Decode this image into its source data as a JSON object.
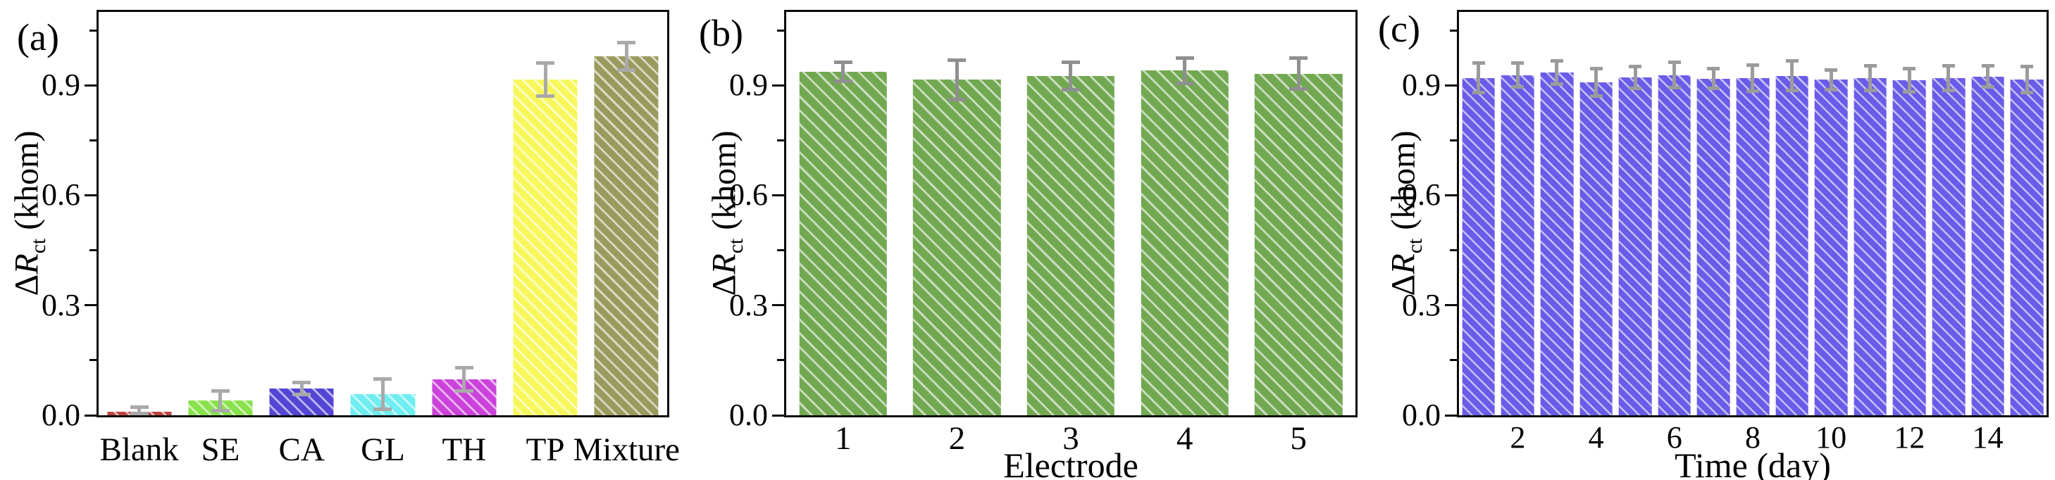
{
  "figure": {
    "panels": [
      {
        "label": "(a)",
        "ylabel_delta": "Δ",
        "ylabel_symbol": "R",
        "ylabel_sub": "ct",
        "ylabel_unit": " (khom)"
      },
      {
        "label": "(b)",
        "ylabel_delta": "Δ",
        "ylabel_symbol": "R",
        "ylabel_sub": "ct",
        "ylabel_unit": " (khom)"
      },
      {
        "label": "(c)",
        "ylabel_delta": "Δ",
        "ylabel_symbol": "R",
        "ylabel_sub": "ct",
        "ylabel_unit": " (khom)"
      }
    ]
  },
  "chart_data": [
    {
      "type": "bar",
      "panel": "a",
      "panel_label": "(a)",
      "title": "",
      "categories": [
        "Blank",
        "SE",
        "CA",
        "GL",
        "TH",
        "TP",
        "Mixture"
      ],
      "values": [
        0.01,
        0.04,
        0.073,
        0.057,
        0.098,
        0.916,
        0.979
      ],
      "errors": [
        0.016,
        0.032,
        0.021,
        0.046,
        0.036,
        0.05,
        0.042
      ],
      "bar_colors": [
        "#bb4442",
        "#89e24b",
        "#5545d4",
        "#6fedf0",
        "#cb42da",
        "#f7f75c",
        "#9a9a5e"
      ],
      "hatch": "\\",
      "error_bar_color": "#a9a9a9",
      "xtick_labels": [
        "Blank",
        "SE",
        "CA",
        "GL",
        "TH",
        "TP",
        "Mixture"
      ],
      "xlabel": "",
      "ylabel": "ΔRct (khom)",
      "yticks": [
        0.0,
        0.3,
        0.6,
        0.9
      ],
      "ytick_labels": [
        "0.0",
        "0.3",
        "0.6",
        "0.9"
      ],
      "yticks_minor": [
        0.15,
        0.45,
        0.75,
        1.05
      ],
      "ylim": [
        0,
        1.1
      ],
      "grid": false,
      "legend": "none"
    },
    {
      "type": "bar",
      "panel": "b",
      "panel_label": "(b)",
      "title": "",
      "categories": [
        "1",
        "2",
        "3",
        "4",
        "5"
      ],
      "values": [
        0.937,
        0.915,
        0.925,
        0.94,
        0.932
      ],
      "errors": [
        0.03,
        0.058,
        0.042,
        0.04,
        0.047
      ],
      "bar_color": "#72a851",
      "hatch": "\\",
      "error_bar_color": "#8f8f8f",
      "xtick_labels": [
        "1",
        "2",
        "3",
        "4",
        "5"
      ],
      "xlabel": "Electrode",
      "ylabel": "ΔRct (khom)",
      "yticks": [
        0.0,
        0.3,
        0.6,
        0.9
      ],
      "ytick_labels": [
        "0.0",
        "0.3",
        "0.6",
        "0.9"
      ],
      "yticks_minor": [
        0.15,
        0.45,
        0.75,
        1.05
      ],
      "ylim": [
        0,
        1.1
      ],
      "grid": false,
      "legend": "none"
    },
    {
      "type": "bar",
      "panel": "c",
      "panel_label": "(c)",
      "title": "",
      "categories": [
        "1",
        "2",
        "3",
        "4",
        "5",
        "6",
        "7",
        "8",
        "9",
        "10",
        "11",
        "12",
        "13",
        "14",
        "15"
      ],
      "values": [
        0.92,
        0.928,
        0.935,
        0.908,
        0.922,
        0.928,
        0.918,
        0.92,
        0.926,
        0.915,
        0.92,
        0.914,
        0.92,
        0.924,
        0.916
      ],
      "errors": [
        0.045,
        0.038,
        0.036,
        0.042,
        0.035,
        0.04,
        0.032,
        0.04,
        0.045,
        0.032,
        0.038,
        0.036,
        0.038,
        0.034,
        0.04
      ],
      "bar_color": "#6a5be8",
      "hatch": "\\",
      "error_bar_color": "#9b9b9b",
      "xtick_labels": [
        "",
        "2",
        "",
        "4",
        "",
        "6",
        "",
        "8",
        "",
        "10",
        "",
        "12",
        "",
        "14",
        ""
      ],
      "xlabel": "Time (day)",
      "ylabel": "ΔRct (khom)",
      "yticks": [
        0.0,
        0.3,
        0.6,
        0.9
      ],
      "ytick_labels": [
        "0.0",
        "0.3",
        "0.6",
        "0.9"
      ],
      "yticks_minor": [
        0.15,
        0.45,
        0.75,
        1.05
      ],
      "ylim": [
        0,
        1.1
      ],
      "grid": false,
      "legend": "none"
    }
  ]
}
